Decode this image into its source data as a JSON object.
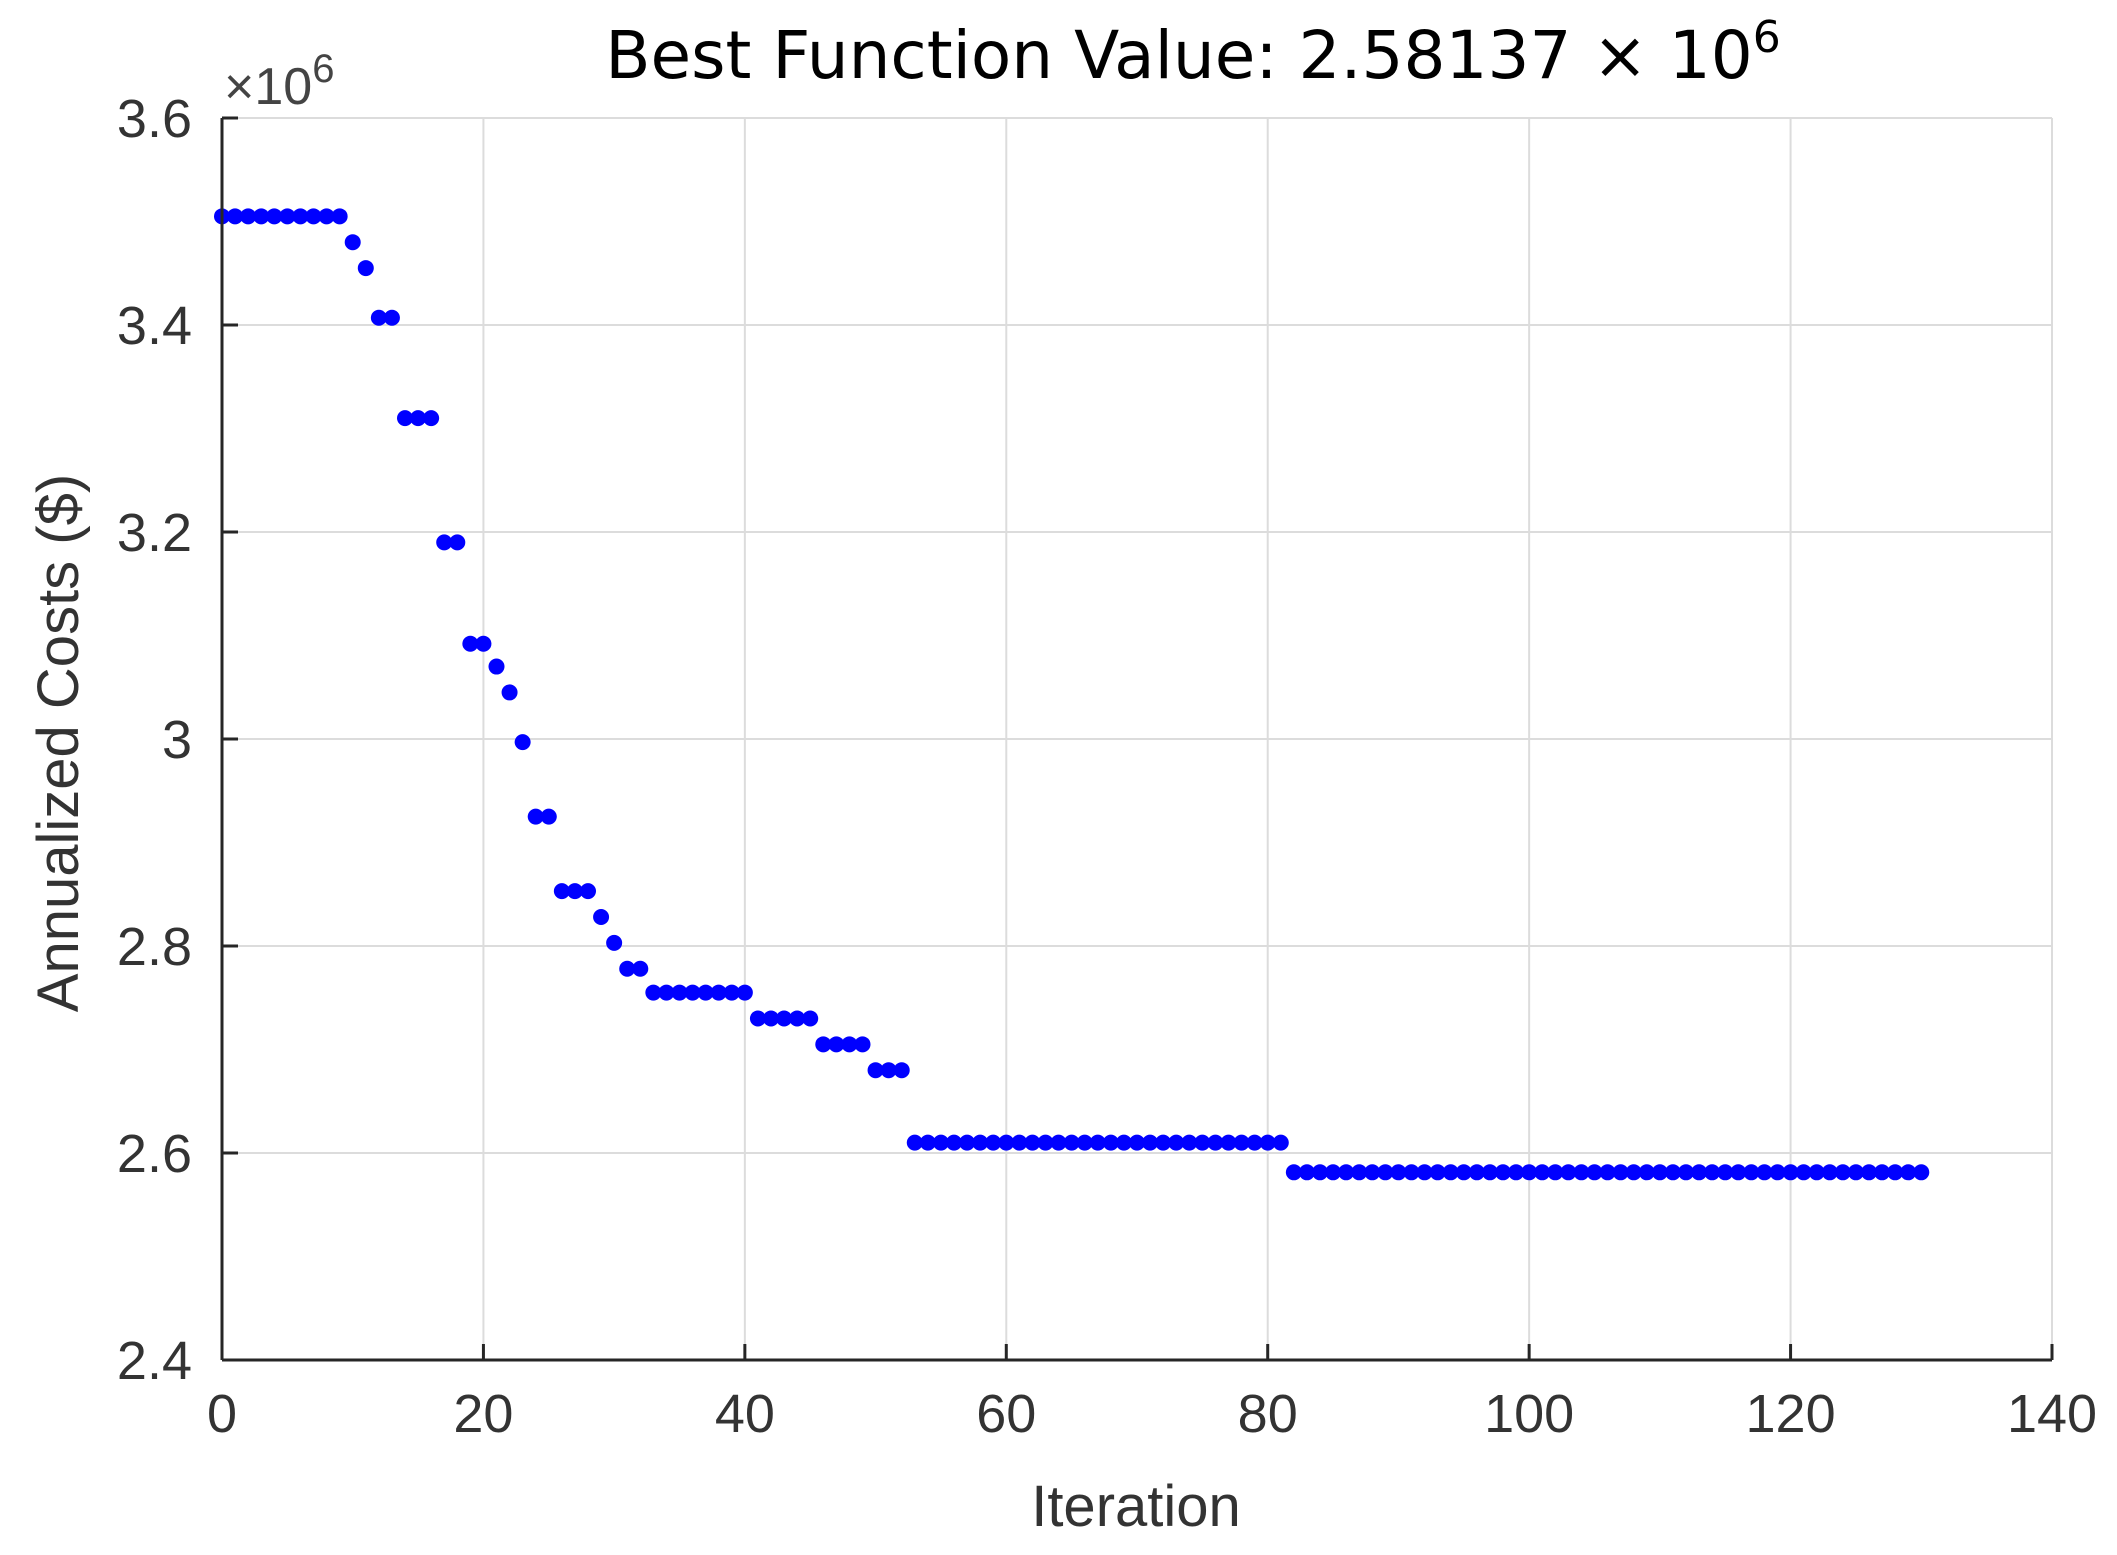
{
  "chart_data": {
    "type": "scatter",
    "title_prefix": "Best Function Value: 2.58137 × 10",
    "title_exponent": "6",
    "xlabel": "Iteration",
    "ylabel": "Annualized Costs ($)",
    "y_exponent_prefix": "×10",
    "y_exponent": "6",
    "xlim": [
      0,
      140
    ],
    "ylim": [
      2.4,
      3.6
    ],
    "xticks": [
      0,
      20,
      40,
      60,
      80,
      100,
      120,
      140
    ],
    "xtick_labels": [
      "0",
      "20",
      "40",
      "60",
      "80",
      "100",
      "120",
      "140"
    ],
    "yticks": [
      2.4,
      2.6,
      2.8,
      3.0,
      3.2,
      3.4,
      3.6
    ],
    "ytick_labels": [
      "2.4",
      "2.6",
      "2.8",
      "3",
      "3.2",
      "3.4",
      "3.6"
    ],
    "grid": true,
    "marker_color": "#0000ff",
    "points": [
      [
        0,
        3.505
      ],
      [
        1,
        3.505
      ],
      [
        2,
        3.505
      ],
      [
        3,
        3.505
      ],
      [
        4,
        3.505
      ],
      [
        5,
        3.505
      ],
      [
        6,
        3.505
      ],
      [
        7,
        3.505
      ],
      [
        8,
        3.505
      ],
      [
        9,
        3.505
      ],
      [
        10,
        3.48
      ],
      [
        11,
        3.455
      ],
      [
        12,
        3.407
      ],
      [
        13,
        3.407
      ],
      [
        14,
        3.31
      ],
      [
        15,
        3.31
      ],
      [
        16,
        3.31
      ],
      [
        17,
        3.19
      ],
      [
        18,
        3.19
      ],
      [
        19,
        3.092
      ],
      [
        20,
        3.092
      ],
      [
        21,
        3.07
      ],
      [
        22,
        3.045
      ],
      [
        23,
        2.997
      ],
      [
        24,
        2.925
      ],
      [
        25,
        2.925
      ],
      [
        26,
        2.853
      ],
      [
        27,
        2.853
      ],
      [
        28,
        2.853
      ],
      [
        29,
        2.828
      ],
      [
        30,
        2.803
      ],
      [
        31,
        2.778
      ],
      [
        32,
        2.778
      ],
      [
        33,
        2.755
      ],
      [
        34,
        2.755
      ],
      [
        35,
        2.755
      ],
      [
        36,
        2.755
      ],
      [
        37,
        2.755
      ],
      [
        38,
        2.755
      ],
      [
        39,
        2.755
      ],
      [
        40,
        2.755
      ],
      [
        41,
        2.73
      ],
      [
        42,
        2.73
      ],
      [
        43,
        2.73
      ],
      [
        44,
        2.73
      ],
      [
        45,
        2.73
      ],
      [
        46,
        2.705
      ],
      [
        47,
        2.705
      ],
      [
        48,
        2.705
      ],
      [
        49,
        2.705
      ],
      [
        50,
        2.68
      ],
      [
        51,
        2.68
      ],
      [
        52,
        2.68
      ],
      [
        53,
        2.61
      ],
      [
        54,
        2.61
      ],
      [
        55,
        2.61
      ],
      [
        56,
        2.61
      ],
      [
        57,
        2.61
      ],
      [
        58,
        2.61
      ],
      [
        59,
        2.61
      ],
      [
        60,
        2.61
      ],
      [
        61,
        2.61
      ],
      [
        62,
        2.61
      ],
      [
        63,
        2.61
      ],
      [
        64,
        2.61
      ],
      [
        65,
        2.61
      ],
      [
        66,
        2.61
      ],
      [
        67,
        2.61
      ],
      [
        68,
        2.61
      ],
      [
        69,
        2.61
      ],
      [
        70,
        2.61
      ],
      [
        71,
        2.61
      ],
      [
        72,
        2.61
      ],
      [
        73,
        2.61
      ],
      [
        74,
        2.61
      ],
      [
        75,
        2.61
      ],
      [
        76,
        2.61
      ],
      [
        77,
        2.61
      ],
      [
        78,
        2.61
      ],
      [
        79,
        2.61
      ],
      [
        80,
        2.61
      ],
      [
        81,
        2.61
      ],
      [
        82,
        2.58137
      ],
      [
        83,
        2.58137
      ],
      [
        84,
        2.58137
      ],
      [
        85,
        2.58137
      ],
      [
        86,
        2.58137
      ],
      [
        87,
        2.58137
      ],
      [
        88,
        2.58137
      ],
      [
        89,
        2.58137
      ],
      [
        90,
        2.58137
      ],
      [
        91,
        2.58137
      ],
      [
        92,
        2.58137
      ],
      [
        93,
        2.58137
      ],
      [
        94,
        2.58137
      ],
      [
        95,
        2.58137
      ],
      [
        96,
        2.58137
      ],
      [
        97,
        2.58137
      ],
      [
        98,
        2.58137
      ],
      [
        99,
        2.58137
      ],
      [
        100,
        2.58137
      ],
      [
        101,
        2.58137
      ],
      [
        102,
        2.58137
      ],
      [
        103,
        2.58137
      ],
      [
        104,
        2.58137
      ],
      [
        105,
        2.58137
      ],
      [
        106,
        2.58137
      ],
      [
        107,
        2.58137
      ],
      [
        108,
        2.58137
      ],
      [
        109,
        2.58137
      ],
      [
        110,
        2.58137
      ],
      [
        111,
        2.58137
      ],
      [
        112,
        2.58137
      ],
      [
        113,
        2.58137
      ],
      [
        114,
        2.58137
      ],
      [
        115,
        2.58137
      ],
      [
        116,
        2.58137
      ],
      [
        117,
        2.58137
      ],
      [
        118,
        2.58137
      ],
      [
        119,
        2.58137
      ],
      [
        120,
        2.58137
      ],
      [
        121,
        2.58137
      ],
      [
        122,
        2.58137
      ],
      [
        123,
        2.58137
      ],
      [
        124,
        2.58137
      ],
      [
        125,
        2.58137
      ],
      [
        126,
        2.58137
      ],
      [
        127,
        2.58137
      ],
      [
        128,
        2.58137
      ],
      [
        129,
        2.58137
      ],
      [
        130,
        2.58137
      ]
    ]
  }
}
